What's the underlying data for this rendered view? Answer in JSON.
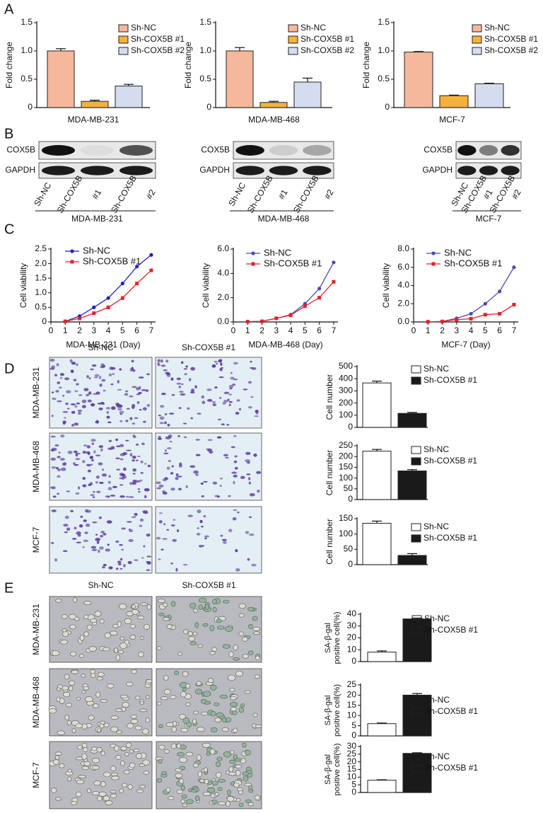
{
  "panels": [
    "A",
    "B",
    "C",
    "D",
    "E"
  ],
  "blots": [
    {
      "rows": [
        "COX5B",
        "GAPDH"
      ],
      "lane_labels": [
        "Sh-NC",
        "Sh-COX5B",
        "#1",
        "Sh-COX5B",
        "#2"
      ],
      "cell_line": "MDA-MB-231"
    },
    {
      "rows": [
        "COX5B",
        "GAPDH"
      ],
      "lane_labels": [
        "Sh-NC",
        "Sh-COX5B",
        "#1",
        "Sh-COX5B",
        "#2"
      ],
      "cell_line": "MDA-MB-468"
    },
    {
      "rows": [
        "COX5B",
        "GAPDH"
      ],
      "lane_labels": [
        "Sh-NC",
        "Sh-COX5B",
        "#1",
        "Sh-COX5B",
        "#2"
      ],
      "cell_line": "MCF-7"
    }
  ],
  "image_grids": [
    {
      "columns": [
        "Sh-NC",
        "Sh-COX5B #1"
      ],
      "rows": [
        "MDA-MB-231",
        "MDA-MB-468",
        "MCF-7"
      ]
    },
    {
      "columns": [
        "Sh-NC",
        "Sh-COX5B #1"
      ],
      "rows": [
        "MDA-MB-231",
        "MDA-MB-468",
        "MCF-7"
      ]
    }
  ],
  "chart_data": [
    {
      "type": "bar",
      "xlabel": "MDA-MB-231",
      "ylabel": "Fold change",
      "ylim": [
        0,
        1.5
      ],
      "yticks": [
        0,
        0.5,
        {
          "value": 1,
          "label": "1.0"
        },
        1.5
      ],
      "series": [
        {
          "name": "Sh-NC",
          "color": "#f5b89c",
          "values": [
            1.0
          ],
          "errors": [
            0.04
          ]
        },
        {
          "name": "Sh-COX5B #1",
          "color": "#f6b13c",
          "values": [
            0.11
          ],
          "errors": [
            0.02
          ]
        },
        {
          "name": "Sh-COX5B #2",
          "color": "#d6dcf0",
          "values": [
            0.38
          ],
          "errors": [
            0.03
          ]
        }
      ]
    },
    {
      "type": "bar",
      "xlabel": "MDA-MB-468",
      "ylabel": "Fold change",
      "ylim": [
        0,
        1.5
      ],
      "yticks": [
        0,
        0.5,
        {
          "value": 1,
          "label": "1.0"
        },
        1.5
      ],
      "series": [
        {
          "name": "Sh-NC",
          "color": "#f5b89c",
          "values": [
            1.0
          ],
          "errors": [
            0.06
          ]
        },
        {
          "name": "Sh-COX5B #1",
          "color": "#f6b13c",
          "values": [
            0.09
          ],
          "errors": [
            0.02
          ]
        },
        {
          "name": "Sh-COX5B #2",
          "color": "#d6dcf0",
          "values": [
            0.45
          ],
          "errors": [
            0.07
          ]
        }
      ]
    },
    {
      "type": "bar",
      "xlabel": "MCF-7",
      "ylabel": "Fold change",
      "ylim": [
        0,
        1.5
      ],
      "yticks": [
        0,
        0.5,
        {
          "value": 1,
          "label": "1.0"
        },
        1.5
      ],
      "series": [
        {
          "name": "Sh-NC",
          "color": "#f5b89c",
          "values": [
            0.98
          ],
          "errors": [
            0.01
          ]
        },
        {
          "name": "Sh-COX5B #1",
          "color": "#f6b13c",
          "values": [
            0.21
          ],
          "errors": [
            0.01
          ]
        },
        {
          "name": "Sh-COX5B #2",
          "color": "#d6dcf0",
          "values": [
            0.42
          ],
          "errors": [
            0.01
          ]
        }
      ]
    },
    {
      "type": "line",
      "xlabel": "MDA-MB-231 (Day)",
      "ylabel": "Cell viability",
      "x": [
        1,
        2,
        3,
        4,
        5,
        6,
        7
      ],
      "xlim": [
        0,
        7.3
      ],
      "xticks": [
        0,
        1,
        2,
        3,
        4,
        5,
        6,
        7
      ],
      "ylim": [
        0,
        2.5
      ],
      "yticks": [
        0,
        0.5,
        {
          "value": 1,
          "label": "1.0"
        },
        1.5,
        {
          "value": 2,
          "label": "2.0"
        },
        2.5
      ],
      "series": [
        {
          "name": "Sh-NC",
          "color": "#2121c4",
          "marker": "circle",
          "values": [
            0.02,
            0.2,
            0.5,
            0.82,
            1.32,
            1.9,
            2.3
          ]
        },
        {
          "name": "Sh-COX5B #1",
          "color": "#e8202a",
          "marker": "square",
          "values": [
            0.02,
            0.12,
            0.3,
            0.5,
            0.82,
            1.32,
            1.77
          ]
        }
      ]
    },
    {
      "type": "line",
      "xlabel": "MDA-MB-468 (Day)",
      "ylabel": "Cell viability",
      "x": [
        1,
        2,
        3,
        4,
        5,
        6,
        7
      ],
      "xlim": [
        0,
        7.3
      ],
      "xticks": [
        0,
        1,
        2,
        3,
        4,
        5,
        6,
        7
      ],
      "ylim": [
        0,
        6
      ],
      "yticks": [
        {
          "value": 0,
          "label": "0.0"
        },
        {
          "value": 2,
          "label": "2.0"
        },
        {
          "value": 4,
          "label": "4.0"
        },
        {
          "value": 6,
          "label": "6.0"
        }
      ],
      "series": [
        {
          "name": "Sh-NC",
          "color": "#4a4ab8",
          "marker": "circle",
          "values": [
            0.02,
            0.05,
            0.3,
            0.6,
            1.5,
            2.75,
            4.9
          ]
        },
        {
          "name": "Sh-COX5B #1",
          "color": "#e8202a",
          "marker": "square",
          "values": [
            0.02,
            0.05,
            0.3,
            0.55,
            1.3,
            2.0,
            3.3
          ]
        }
      ]
    },
    {
      "type": "line",
      "xlabel": "MCF-7 (Day)",
      "ylabel": "Cell viability",
      "x": [
        1,
        2,
        3,
        4,
        5,
        6,
        7
      ],
      "xlim": [
        0,
        7.3
      ],
      "xticks": [
        0,
        1,
        2,
        3,
        4,
        5,
        6,
        7
      ],
      "ylim": [
        0,
        8
      ],
      "yticks": [
        {
          "value": 0,
          "label": "0.0"
        },
        {
          "value": 2,
          "label": "2.0"
        },
        {
          "value": 4,
          "label": "4.0"
        },
        {
          "value": 6,
          "label": "6.0"
        },
        {
          "value": 8,
          "label": "8.0"
        }
      ],
      "series": [
        {
          "name": "Sh-NC",
          "color": "#4a4ab8",
          "marker": "circle",
          "values": [
            0.02,
            0.05,
            0.4,
            0.9,
            2.0,
            3.35,
            6.0
          ]
        },
        {
          "name": "Sh-COX5B #1",
          "color": "#e8202a",
          "marker": "square",
          "values": [
            0.02,
            0.05,
            0.25,
            0.35,
            0.8,
            0.9,
            1.9
          ]
        }
      ]
    },
    {
      "type": "bar",
      "ylabel": "Cell number",
      "ylim": [
        0,
        500
      ],
      "yticks": [
        0,
        100,
        200,
        300,
        400,
        500
      ],
      "series": [
        {
          "name": "Sh-NC",
          "color": "#ffffff",
          "values": [
            365
          ],
          "errors": [
            15
          ]
        },
        {
          "name": "Sh-COX5B #1",
          "color": "#1a1a1a",
          "values": [
            115
          ],
          "errors": [
            8
          ]
        }
      ]
    },
    {
      "type": "bar",
      "ylabel": "Cell number",
      "ylim": [
        0,
        250
      ],
      "yticks": [
        0,
        50,
        100,
        150,
        200,
        250
      ],
      "series": [
        {
          "name": "Sh-NC",
          "color": "#ffffff",
          "values": [
            225
          ],
          "errors": [
            8
          ]
        },
        {
          "name": "Sh-COX5B #1",
          "color": "#1a1a1a",
          "values": [
            133
          ],
          "errors": [
            6
          ]
        }
      ]
    },
    {
      "type": "bar",
      "ylabel": "Cell number",
      "ylim": [
        0,
        150
      ],
      "yticks": [
        0,
        50,
        100,
        150
      ],
      "series": [
        {
          "name": "Sh-NC",
          "color": "#ffffff",
          "values": [
            135
          ],
          "errors": [
            7
          ]
        },
        {
          "name": "Sh-COX5B #1",
          "color": "#1a1a1a",
          "values": [
            30
          ],
          "errors": [
            6
          ]
        }
      ]
    },
    {
      "type": "bar",
      "ylabel": [
        "SA-β-gal",
        "positive cell(%)"
      ],
      "ylim": [
        0,
        40
      ],
      "yticks": [
        0,
        10,
        20,
        30,
        40
      ],
      "series": [
        {
          "name": "Sh-NC",
          "color": "#ffffff",
          "values": [
            8
          ],
          "errors": [
            1
          ]
        },
        {
          "name": "Sh-COX5B #1",
          "color": "#1a1a1a",
          "values": [
            36
          ],
          "errors": [
            0.7
          ]
        }
      ]
    },
    {
      "type": "bar",
      "ylabel": [
        "SA-β-gal",
        "positive cell(%)"
      ],
      "ylim": [
        0,
        25
      ],
      "yticks": [
        0,
        5,
        10,
        15,
        20,
        25
      ],
      "series": [
        {
          "name": "Sh-NC",
          "color": "#ffffff",
          "values": [
            6
          ],
          "errors": [
            0.3
          ]
        },
        {
          "name": "Sh-COX5B #1",
          "color": "#1a1a1a",
          "values": [
            20
          ],
          "errors": [
            0.8
          ]
        }
      ]
    },
    {
      "type": "bar",
      "ylabel": [
        "SA-β-gal",
        "positive cell(%)"
      ],
      "ylim": [
        0,
        30
      ],
      "yticks": [
        0,
        5,
        10,
        15,
        20,
        25,
        30
      ],
      "series": [
        {
          "name": "Sh-NC",
          "color": "#ffffff",
          "values": [
            8
          ],
          "errors": [
            0.3
          ]
        },
        {
          "name": "Sh-COX5B #1",
          "color": "#1a1a1a",
          "values": [
            25.5
          ],
          "errors": [
            0.4
          ]
        }
      ]
    }
  ]
}
